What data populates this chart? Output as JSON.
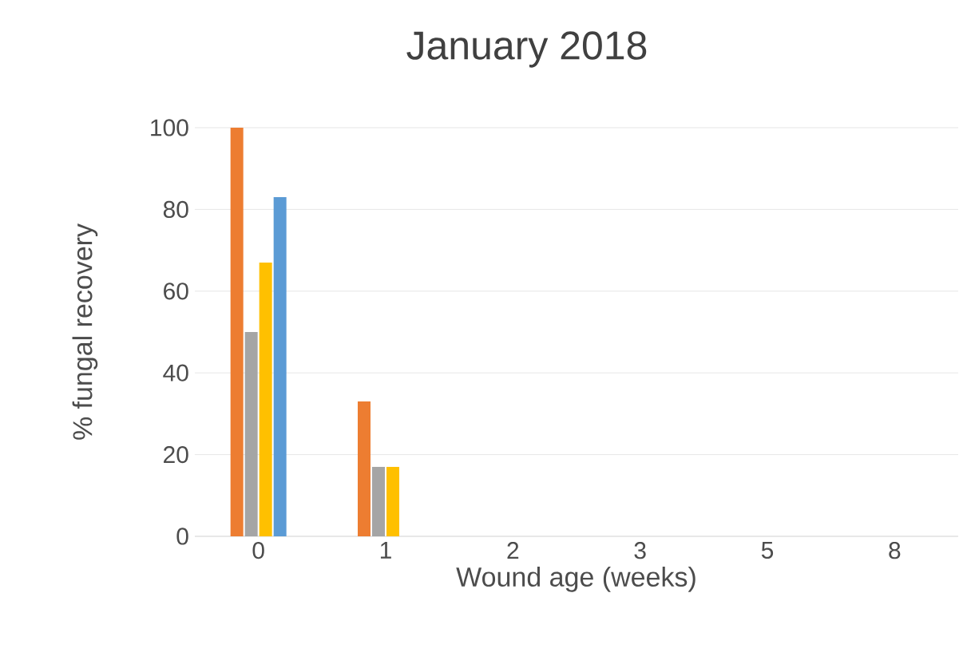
{
  "chart_data": {
    "type": "bar",
    "title": "January 2018",
    "xlabel": "Wound age (weeks)",
    "ylabel": "% fungal recovery",
    "categories": [
      "0",
      "1",
      "2",
      "3",
      "5",
      "8"
    ],
    "series": [
      {
        "color": "#ed7d31",
        "values": [
          100,
          33,
          0,
          0,
          0,
          0
        ]
      },
      {
        "color": "#a5a5a5",
        "values": [
          50,
          17,
          0,
          0,
          0,
          0
        ]
      },
      {
        "color": "#ffc000",
        "values": [
          67,
          17,
          0,
          0,
          0,
          0
        ]
      },
      {
        "color": "#5b9bd5",
        "values": [
          83,
          0,
          0,
          0,
          0,
          0
        ]
      }
    ],
    "ylim": [
      0,
      100
    ],
    "yticks": [
      0,
      20,
      40,
      60,
      80,
      100
    ],
    "grid": "y"
  }
}
